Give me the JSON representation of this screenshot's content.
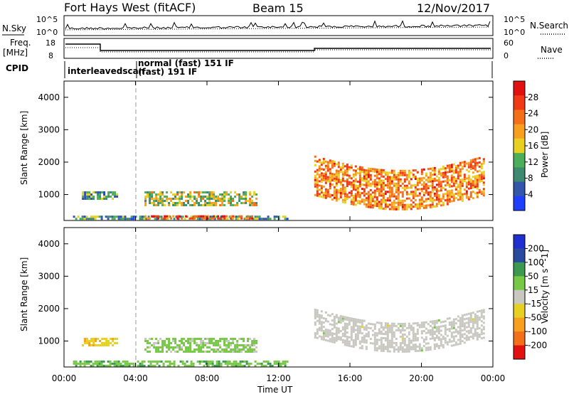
{
  "header": {
    "station": "Fort Hays West (fitACF)",
    "beam": "Beam 15",
    "date": "12/Nov/2017"
  },
  "labels": {
    "nsky": "N.Sky",
    "nsearch": "N.Search",
    "freq": "Freq.",
    "freq_unit": "[MHz]",
    "nave": "Nave",
    "cpid": "CPID",
    "cpid_1": "interleavedscan",
    "cpid_2": "normal (fast) 151 IF",
    "cpid_3": "(fast) 191 IF",
    "noise_tick_top": "10^5",
    "noise_tick_bot": "10^0",
    "freq_tick_top": "18",
    "freq_tick_bot": "8",
    "nave_tick_top": "60",
    "nave_tick_bot": "0",
    "slant_range": "Slant Range [km]",
    "time_label": "Time UT"
  },
  "colors": {
    "power_scale": [
      "#1f3fff",
      "#3355aa",
      "#3d8a70",
      "#4dae5a",
      "#e8d020",
      "#f7a020",
      "#f46f1a",
      "#ef3a14",
      "#e31010"
    ],
    "velocity_scale": [
      "#e31010",
      "#f46f1a",
      "#f7a020",
      "#e8d020",
      "#c8c8c0",
      "#78c848",
      "#3c9a50",
      "#2a4aa0",
      "#1f2fd0"
    ]
  },
  "chart_data": [
    {
      "type": "heatmap",
      "title": "Power",
      "xlabel": "Time UT",
      "ylabel": "Slant Range [km]",
      "x_ticks": [
        "00:00",
        "04:00",
        "08:00",
        "12:00",
        "16:00",
        "20:00",
        "00:00"
      ],
      "y_ticks": [
        1000,
        2000,
        3000,
        4000
      ],
      "xlim": [
        0,
        24
      ],
      "ylim": [
        200,
        4500
      ],
      "colorbar": {
        "label": "Power [dB]",
        "ticks": [
          4,
          8,
          12,
          16,
          20,
          24,
          28
        ],
        "range": [
          0,
          32
        ]
      },
      "features": [
        {
          "name": "near-range band",
          "t": [
            0.5,
            12.5
          ],
          "range_km": [
            250,
            350
          ],
          "level_db": 10
        },
        {
          "name": "E-region patch",
          "t": [
            4.5,
            10.5
          ],
          "range_km": [
            260,
            360
          ],
          "level_db": 26
        },
        {
          "name": "echo band A",
          "t": [
            1.0,
            3.0
          ],
          "range_km": [
            850,
            1100
          ],
          "level_db": 10
        },
        {
          "name": "echo band B",
          "t": [
            4.5,
            10.8
          ],
          "range_km": [
            700,
            1100
          ],
          "level_db": 15
        },
        {
          "name": "afternoon band",
          "t": [
            14.0,
            23.5
          ],
          "range_km": [
            950,
            2200
          ],
          "level_db": 22
        }
      ]
    },
    {
      "type": "heatmap",
      "title": "Velocity",
      "xlabel": "Time UT",
      "ylabel": "Slant Range [km]",
      "x_ticks": [
        "00:00",
        "04:00",
        "08:00",
        "12:00",
        "16:00",
        "20:00",
        "00:00"
      ],
      "y_ticks": [
        1000,
        2000,
        3000,
        4000
      ],
      "xlim": [
        0,
        24
      ],
      "ylim": [
        200,
        4500
      ],
      "colorbar": {
        "label": "Velocity [m s^-1]",
        "ticks": [
          200,
          100,
          50,
          15,
          -15,
          -50,
          -100,
          -200
        ]
      },
      "features": [
        {
          "name": "echo band A",
          "t": [
            1.0,
            3.0
          ],
          "range_km": [
            850,
            1100
          ],
          "velocity": 60
        },
        {
          "name": "echo band B",
          "t": [
            4.5,
            10.8
          ],
          "range_km": [
            700,
            1100
          ],
          "velocity": -40
        },
        {
          "name": "near-range band",
          "t": [
            0.5,
            12.5
          ],
          "range_km": [
            250,
            400
          ],
          "velocity": -60
        },
        {
          "name": "afternoon band",
          "t": [
            14.0,
            23.5
          ],
          "range_km": [
            1100,
            2000
          ],
          "velocity": 0
        }
      ]
    }
  ]
}
